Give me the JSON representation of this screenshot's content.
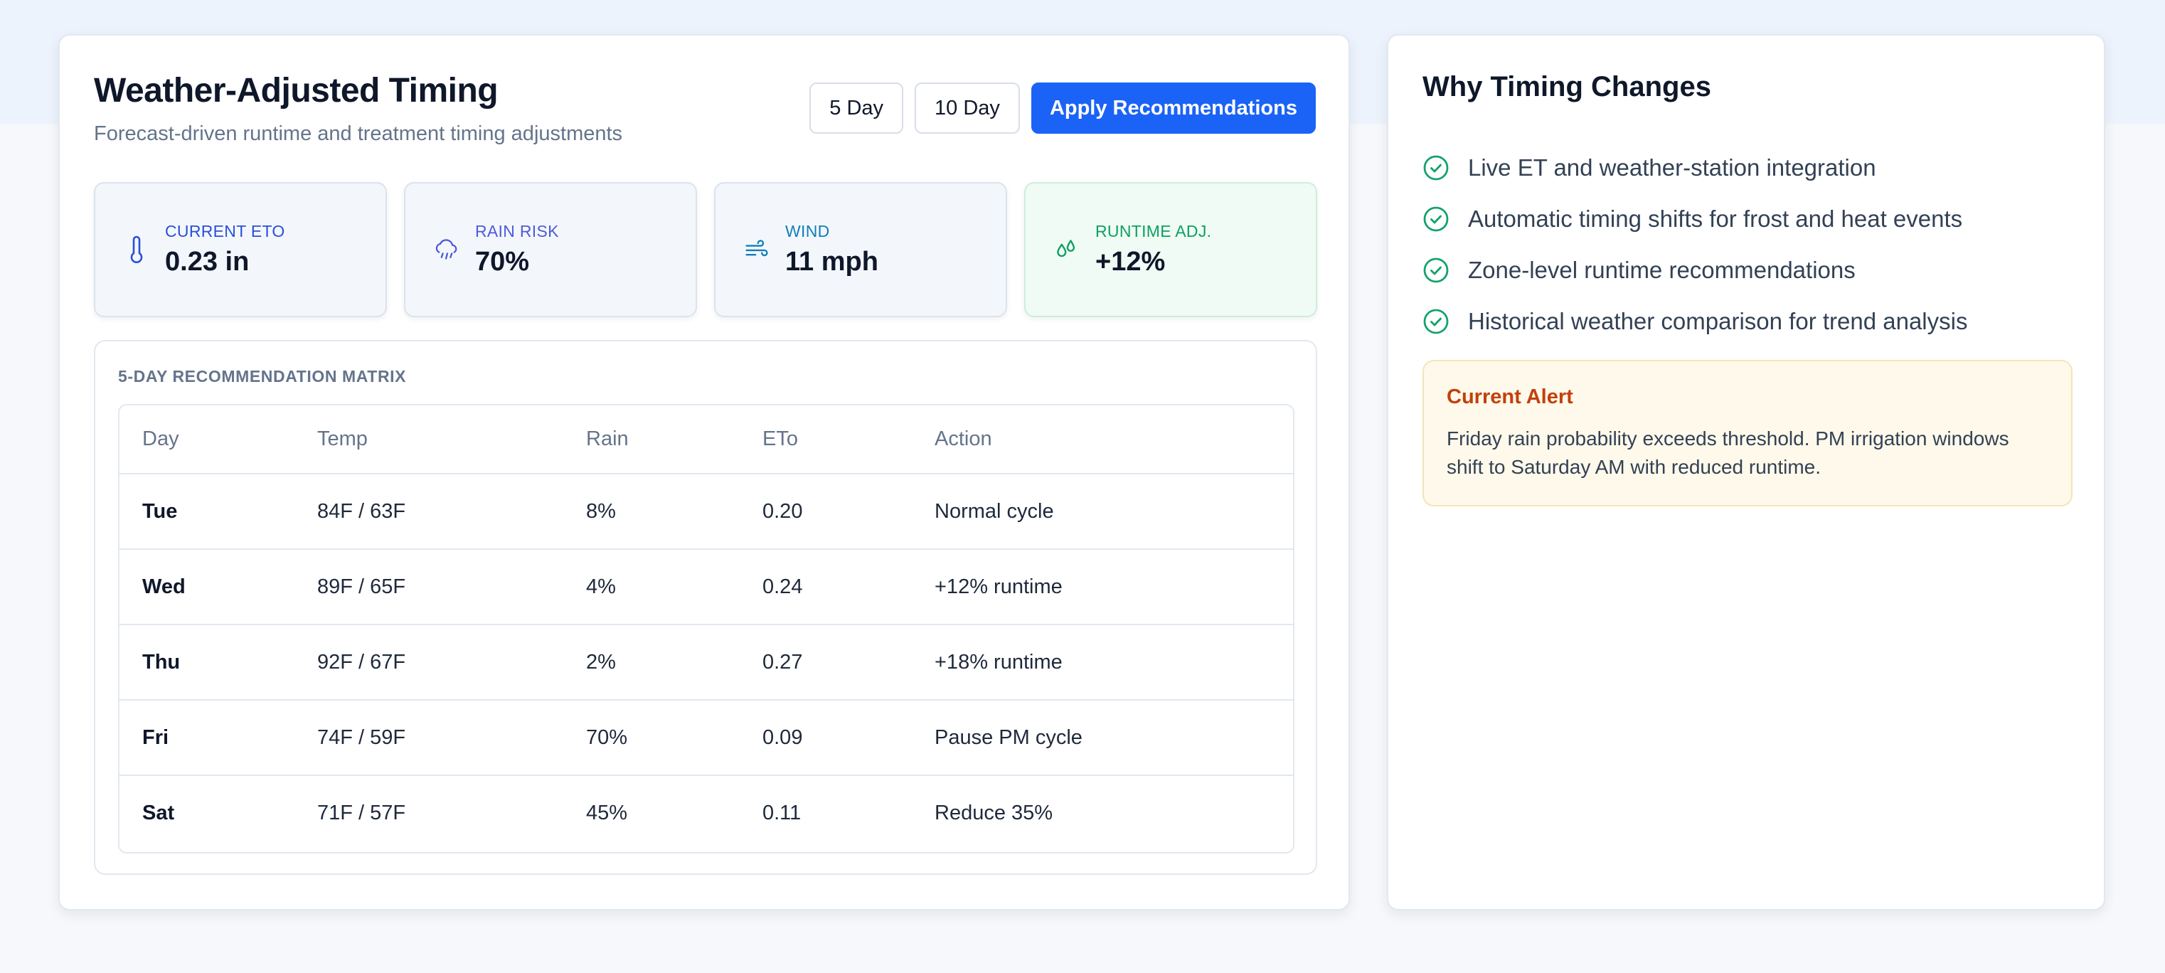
{
  "header": {
    "title": "Weather-Adjusted Timing",
    "subtitle": "Forecast-driven runtime and treatment timing adjustments"
  },
  "toolbar": {
    "five_day_label": "5 Day",
    "ten_day_label": "10 Day",
    "apply_label": "Apply Recommendations",
    "accent_color": "#1b63f6"
  },
  "stats": [
    {
      "label": "Current ETo",
      "value": "0.23 in",
      "icon": "thermometer-icon",
      "color": "#2b4fd8"
    },
    {
      "label": "Rain Risk",
      "value": "70%",
      "icon": "cloud-rain-icon",
      "color": "#4f5bd5"
    },
    {
      "label": "Wind",
      "value": "11 mph",
      "icon": "wind-icon",
      "color": "#0f7fb8"
    },
    {
      "label": "Runtime Adj.",
      "value": "+12%",
      "icon": "droplets-icon",
      "color": "#0f9f62"
    }
  ],
  "matrix": {
    "title": "5-Day Recommendation Matrix",
    "columns": [
      "Day",
      "Temp",
      "Rain",
      "ETo",
      "Action"
    ],
    "rows": [
      {
        "day": "Tue",
        "temp": "84F / 63F",
        "rain": "8%",
        "eto": "0.20",
        "action": "Normal cycle"
      },
      {
        "day": "Wed",
        "temp": "89F / 65F",
        "rain": "4%",
        "eto": "0.24",
        "action": "+12% runtime"
      },
      {
        "day": "Thu",
        "temp": "92F / 67F",
        "rain": "2%",
        "eto": "0.27",
        "action": "+18% runtime"
      },
      {
        "day": "Fri",
        "temp": "74F / 59F",
        "rain": "70%",
        "eto": "0.09",
        "action": "Pause PM cycle"
      },
      {
        "day": "Sat",
        "temp": "71F / 57F",
        "rain": "45%",
        "eto": "0.11",
        "action": "Reduce 35%"
      }
    ]
  },
  "sidebar": {
    "title": "Why Timing Changes",
    "features": [
      "Live ET and weather-station integration",
      "Automatic timing shifts for frost and heat events",
      "Zone-level runtime recommendations",
      "Historical weather comparison for trend analysis"
    ],
    "feature_icon": "check-circle-icon",
    "alert": {
      "title": "Current Alert",
      "text": "Friday rain probability exceeds threshold. PM irrigation windows shift to Saturday AM with reduced runtime."
    }
  }
}
